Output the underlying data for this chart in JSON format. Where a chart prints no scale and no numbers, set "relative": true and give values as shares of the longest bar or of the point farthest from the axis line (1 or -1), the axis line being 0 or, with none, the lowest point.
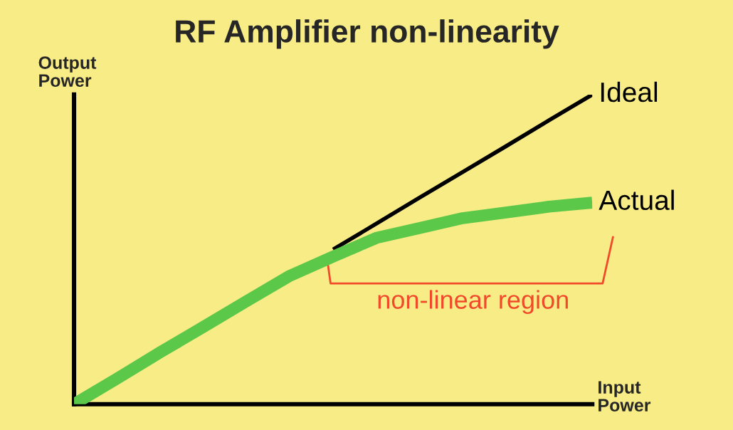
{
  "chart_data": {
    "type": "line",
    "title": "RF Amplifier non-linearity",
    "xlabel": "Input\nPower",
    "ylabel": "Output\nPower",
    "relative": true,
    "categories": [
      null,
      null,
      null,
      null,
      null,
      null,
      null,
      null,
      null,
      null,
      null,
      null,
      null
    ],
    "series": [
      {
        "name": "Ideal",
        "color": "#000000",
        "values": [
          null,
          null,
          null,
          null,
          null,
          null,
          0.5,
          0.583,
          0.667,
          0.75,
          0.833,
          0.917,
          1
        ]
      },
      {
        "name": "Actual",
        "color": "#5cc84a",
        "values": [
          0,
          0.083,
          0.168,
          0.25,
          0.333,
          0.415,
          0.477,
          0.537,
          0.569,
          0.601,
          0.619,
          0.638,
          0.651
        ]
      }
    ],
    "annotations": [
      "non-linear region"
    ],
    "legend": false,
    "marker": "none",
    "line_style": "solid"
  }
}
